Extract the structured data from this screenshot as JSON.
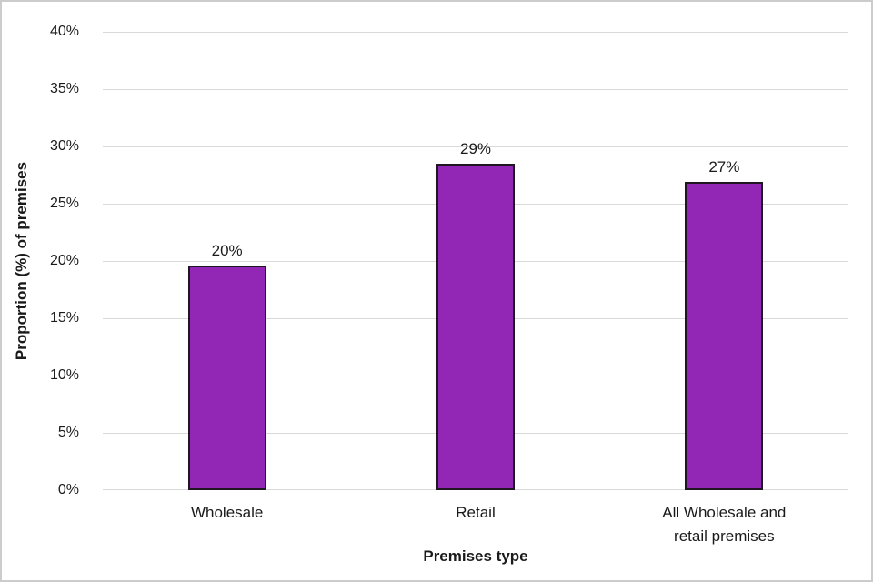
{
  "chart_data": {
    "type": "bar",
    "xlabel": "Premises type",
    "ylabel": "Proportion (%) of premises",
    "categories": [
      "Wholesale",
      "Retail",
      "All Wholesale and\nretail premises"
    ],
    "values": [
      19.6,
      28.5,
      26.9
    ],
    "bar_labels": [
      "20%",
      "29%",
      "27%"
    ],
    "ylim": [
      0,
      40
    ],
    "ytick_step": 5,
    "yticks": [
      "0%",
      "5%",
      "10%",
      "15%",
      "20%",
      "25%",
      "30%",
      "35%",
      "40%"
    ],
    "grid": true,
    "legend": "none",
    "colors": {
      "bar_fill": "#9227B6",
      "bar_border": "#201622",
      "gridline": "#D9D9D9",
      "text": "#1A1A1A"
    }
  }
}
